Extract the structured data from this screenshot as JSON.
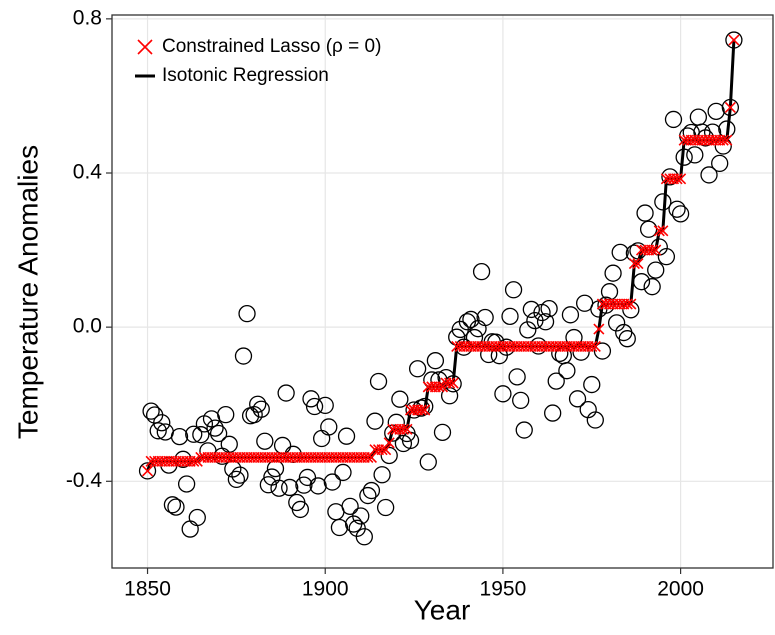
{
  "chart_data": {
    "type": "scatter",
    "xlabel": "Year",
    "ylabel": "Temperature Anomalies",
    "xlim": [
      1840,
      2026
    ],
    "ylim": [
      -0.625,
      0.81
    ],
    "xticks": [
      1850,
      1900,
      1950,
      2000
    ],
    "yticks": [
      -0.4,
      {
        "value": 0,
        "label": "0.0"
      },
      0.4,
      0.8
    ],
    "grid": true,
    "legend": "top-left",
    "x": [
      1850,
      1851,
      1852,
      1853,
      1854,
      1855,
      1856,
      1857,
      1858,
      1859,
      1860,
      1861,
      1862,
      1863,
      1864,
      1865,
      1866,
      1867,
      1868,
      1869,
      1870,
      1871,
      1872,
      1873,
      1874,
      1875,
      1876,
      1877,
      1878,
      1879,
      1880,
      1881,
      1882,
      1883,
      1884,
      1885,
      1886,
      1887,
      1888,
      1889,
      1890,
      1891,
      1892,
      1893,
      1894,
      1895,
      1896,
      1897,
      1898,
      1899,
      1900,
      1901,
      1902,
      1903,
      1904,
      1905,
      1906,
      1907,
      1908,
      1909,
      1910,
      1911,
      1912,
      1913,
      1914,
      1915,
      1916,
      1917,
      1918,
      1919,
      1920,
      1921,
      1922,
      1923,
      1924,
      1925,
      1926,
      1927,
      1928,
      1929,
      1930,
      1931,
      1932,
      1933,
      1934,
      1935,
      1936,
      1937,
      1938,
      1939,
      1940,
      1941,
      1942,
      1943,
      1944,
      1945,
      1946,
      1947,
      1948,
      1949,
      1950,
      1951,
      1952,
      1953,
      1954,
      1955,
      1956,
      1957,
      1958,
      1959,
      1960,
      1961,
      1962,
      1963,
      1964,
      1965,
      1966,
      1967,
      1968,
      1969,
      1970,
      1971,
      1972,
      1973,
      1974,
      1975,
      1976,
      1977,
      1978,
      1979,
      1980,
      1981,
      1982,
      1983,
      1984,
      1985,
      1986,
      1987,
      1988,
      1989,
      1990,
      1991,
      1992,
      1993,
      1994,
      1995,
      1996,
      1997,
      1998,
      1999,
      2000,
      2001,
      2002,
      2003,
      2004,
      2005,
      2006,
      2007,
      2008,
      2009,
      2010,
      2011,
      2012,
      2013,
      2014,
      2015
    ],
    "points": {
      "color": "#000000",
      "values": [
        -0.373,
        -0.218,
        -0.228,
        -0.269,
        -0.248,
        -0.272,
        -0.358,
        -0.461,
        -0.467,
        -0.284,
        -0.343,
        -0.407,
        -0.524,
        -0.278,
        -0.494,
        -0.279,
        -0.251,
        -0.321,
        -0.238,
        -0.262,
        -0.276,
        -0.335,
        -0.227,
        -0.304,
        -0.368,
        -0.395,
        -0.384,
        -0.075,
        0.035,
        -0.23,
        -0.227,
        -0.2,
        -0.213,
        -0.296,
        -0.409,
        -0.389,
        -0.367,
        -0.418,
        -0.307,
        -0.171,
        -0.416,
        -0.33,
        -0.455,
        -0.473,
        -0.41,
        -0.39,
        -0.186,
        -0.206,
        -0.412,
        -0.289,
        -0.203,
        -0.259,
        -0.402,
        -0.479,
        -0.52,
        -0.377,
        -0.283,
        -0.465,
        -0.511,
        -0.522,
        -0.49,
        -0.544,
        -0.437,
        -0.424,
        -0.244,
        -0.141,
        -0.383,
        -0.468,
        -0.333,
        -0.275,
        -0.247,
        -0.187,
        -0.302,
        -0.276,
        -0.294,
        -0.215,
        -0.108,
        -0.21,
        -0.206,
        -0.35,
        -0.137,
        -0.087,
        -0.137,
        -0.273,
        -0.131,
        -0.178,
        -0.147,
        -0.026,
        -0.006,
        -0.052,
        0.014,
        0.02,
        -0.027,
        -0.004,
        0.144,
        0.025,
        -0.071,
        -0.038,
        -0.039,
        -0.074,
        -0.173,
        -0.052,
        0.028,
        0.097,
        -0.129,
        -0.19,
        -0.267,
        -0.007,
        0.046,
        0.017,
        -0.049,
        0.038,
        0.014,
        0.048,
        -0.223,
        -0.14,
        -0.068,
        -0.074,
        -0.113,
        0.032,
        -0.027,
        -0.186,
        -0.065,
        0.062,
        -0.214,
        -0.149,
        -0.241,
        0.047,
        -0.062,
        0.057,
        0.092,
        0.14,
        0.011,
        0.194,
        -0.014,
        -0.03,
        0.045,
        0.192,
        0.198,
        0.118,
        0.296,
        0.254,
        0.105,
        0.148,
        0.208,
        0.325,
        0.183,
        0.39,
        0.539,
        0.306,
        0.294,
        0.441,
        0.496,
        0.505,
        0.447,
        0.545,
        0.506,
        0.491,
        0.395,
        0.506,
        0.56,
        0.425,
        0.47,
        0.514,
        0.57,
        0.745
      ]
    },
    "series": [
      {
        "name": "Constrained Lasso (ρ = 0)",
        "color": "#ff0000",
        "values": [
          -0.373,
          -0.348,
          -0.348,
          -0.348,
          -0.348,
          -0.348,
          -0.348,
          -0.348,
          -0.348,
          -0.348,
          -0.348,
          -0.348,
          -0.348,
          -0.348,
          -0.348,
          -0.338,
          -0.338,
          -0.338,
          -0.338,
          -0.338,
          -0.338,
          -0.338,
          -0.338,
          -0.338,
          -0.338,
          -0.338,
          -0.338,
          -0.338,
          -0.338,
          -0.338,
          -0.338,
          -0.338,
          -0.338,
          -0.338,
          -0.338,
          -0.338,
          -0.338,
          -0.338,
          -0.338,
          -0.338,
          -0.338,
          -0.338,
          -0.338,
          -0.338,
          -0.338,
          -0.338,
          -0.338,
          -0.338,
          -0.338,
          -0.338,
          -0.338,
          -0.338,
          -0.338,
          -0.338,
          -0.338,
          -0.338,
          -0.338,
          -0.338,
          -0.338,
          -0.338,
          -0.338,
          -0.338,
          -0.338,
          -0.338,
          -0.318,
          -0.318,
          -0.318,
          -0.318,
          -0.3,
          -0.265,
          -0.265,
          -0.265,
          -0.265,
          -0.265,
          -0.215,
          -0.215,
          -0.215,
          -0.215,
          -0.215,
          -0.155,
          -0.155,
          -0.155,
          -0.155,
          -0.155,
          -0.145,
          -0.145,
          -0.145,
          -0.05,
          -0.05,
          -0.05,
          -0.05,
          -0.05,
          -0.05,
          -0.05,
          -0.05,
          -0.05,
          -0.05,
          -0.05,
          -0.05,
          -0.05,
          -0.05,
          -0.05,
          -0.05,
          -0.05,
          -0.05,
          -0.05,
          -0.05,
          -0.05,
          -0.05,
          -0.05,
          -0.05,
          -0.05,
          -0.05,
          -0.05,
          -0.05,
          -0.05,
          -0.05,
          -0.05,
          -0.05,
          -0.05,
          -0.05,
          -0.05,
          -0.05,
          -0.05,
          -0.05,
          -0.05,
          -0.05,
          -0.005,
          0.06,
          0.06,
          0.06,
          0.06,
          0.06,
          0.06,
          0.06,
          0.06,
          0.06,
          0.165,
          0.165,
          0.2,
          0.2,
          0.2,
          0.2,
          0.2,
          0.25,
          0.25,
          0.385,
          0.385,
          0.385,
          0.385,
          0.385,
          0.485,
          0.485,
          0.485,
          0.485,
          0.485,
          0.485,
          0.485,
          0.485,
          0.485,
          0.485,
          0.485,
          0.485,
          0.485,
          0.57,
          0.745
        ]
      },
      {
        "name": "Isotonic Regression",
        "color": "#000000",
        "values": [
          -0.373,
          -0.348,
          -0.348,
          -0.348,
          -0.348,
          -0.348,
          -0.348,
          -0.348,
          -0.348,
          -0.348,
          -0.348,
          -0.348,
          -0.348,
          -0.348,
          -0.348,
          -0.338,
          -0.338,
          -0.338,
          -0.338,
          -0.338,
          -0.338,
          -0.338,
          -0.338,
          -0.338,
          -0.338,
          -0.338,
          -0.338,
          -0.338,
          -0.338,
          -0.338,
          -0.338,
          -0.338,
          -0.338,
          -0.338,
          -0.338,
          -0.338,
          -0.338,
          -0.338,
          -0.338,
          -0.338,
          -0.338,
          -0.338,
          -0.338,
          -0.338,
          -0.338,
          -0.338,
          -0.338,
          -0.338,
          -0.338,
          -0.338,
          -0.338,
          -0.338,
          -0.338,
          -0.338,
          -0.338,
          -0.338,
          -0.338,
          -0.338,
          -0.338,
          -0.338,
          -0.338,
          -0.338,
          -0.338,
          -0.338,
          -0.318,
          -0.318,
          -0.318,
          -0.318,
          -0.3,
          -0.265,
          -0.265,
          -0.265,
          -0.265,
          -0.265,
          -0.215,
          -0.215,
          -0.215,
          -0.215,
          -0.215,
          -0.155,
          -0.155,
          -0.155,
          -0.155,
          -0.155,
          -0.145,
          -0.145,
          -0.145,
          -0.05,
          -0.05,
          -0.05,
          -0.05,
          -0.05,
          -0.05,
          -0.05,
          -0.05,
          -0.05,
          -0.05,
          -0.05,
          -0.05,
          -0.05,
          -0.05,
          -0.05,
          -0.05,
          -0.05,
          -0.05,
          -0.05,
          -0.05,
          -0.05,
          -0.05,
          -0.05,
          -0.05,
          -0.05,
          -0.05,
          -0.05,
          -0.05,
          -0.05,
          -0.05,
          -0.05,
          -0.05,
          -0.05,
          -0.05,
          -0.05,
          -0.05,
          -0.05,
          -0.05,
          -0.05,
          -0.05,
          -0.005,
          0.06,
          0.06,
          0.06,
          0.06,
          0.06,
          0.06,
          0.06,
          0.06,
          0.06,
          0.165,
          0.165,
          0.2,
          0.2,
          0.2,
          0.2,
          0.2,
          0.25,
          0.25,
          0.385,
          0.385,
          0.385,
          0.385,
          0.385,
          0.485,
          0.485,
          0.485,
          0.485,
          0.485,
          0.485,
          0.485,
          0.485,
          0.485,
          0.485,
          0.485,
          0.485,
          0.485,
          0.57,
          0.745
        ]
      }
    ]
  }
}
